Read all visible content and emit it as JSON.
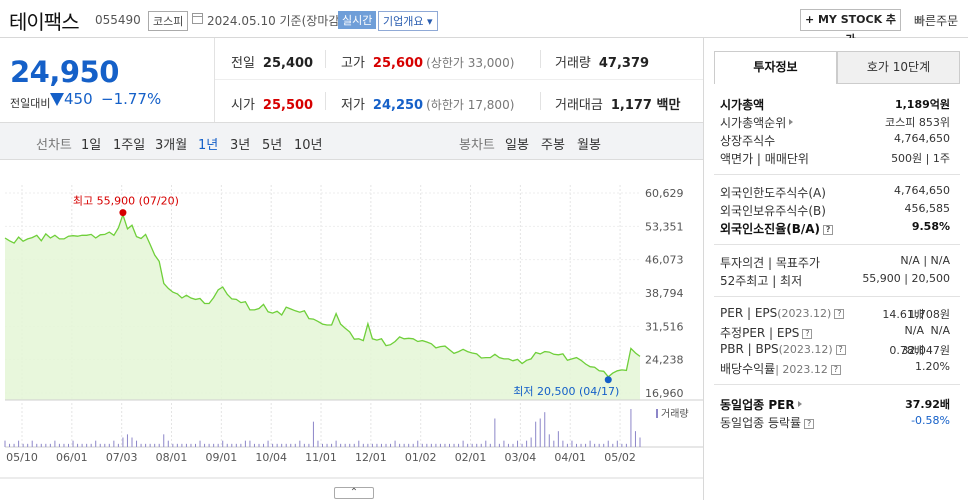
{
  "header": {
    "stock_name": "테이팩스",
    "stock_code": "055490",
    "market": "코스피",
    "date_text": "2024.05.10  기준(장마감)",
    "realtime_badge": "실시간",
    "company_badge": "기업개요 ▾",
    "mystock_label": "+ MY STOCK 추가",
    "quick_order_label": "빠른주문"
  },
  "price": {
    "current": "24,950",
    "change_label": "전일대비",
    "change_value": "450",
    "change_pct": "−1.77%",
    "color": "#1560c8"
  },
  "stats": {
    "prev_close_label": "전일",
    "prev_close": "25,400",
    "high_label": "고가",
    "high": "25,600",
    "upper_limit": "(상한가 33,000)",
    "volume_label": "거래량",
    "volume": "47,379",
    "open_label": "시가",
    "open": "25,500",
    "low_label": "저가",
    "low": "24,250",
    "lower_limit": "(하한가 17,800)",
    "amount_label": "거래대금",
    "amount": "1,177 백만"
  },
  "tabs": {
    "line_chart": "선차트",
    "periods": [
      "1일",
      "1주일",
      "3개월",
      "1년",
      "3년",
      "5년",
      "10년"
    ],
    "active_period": "1년",
    "candle_chart": "봉차트",
    "candle_periods": [
      "일봉",
      "주봉",
      "월봉"
    ]
  },
  "chart_data": {
    "type": "area",
    "y_ticks": [
      "60,629",
      "53,351",
      "46,073",
      "38,794",
      "31,516",
      "24,238",
      "16,960"
    ],
    "ylim": [
      16960,
      60629
    ],
    "x_ticks": [
      "05/10",
      "06/01",
      "07/03",
      "08/01",
      "09/01",
      "10/04",
      "11/01",
      "12/01",
      "01/02",
      "02/01",
      "03/04",
      "04/01",
      "05/02"
    ],
    "series": [
      {
        "values": [
          50800,
          50200,
          49700,
          51000,
          50100,
          50600,
          50900,
          51400,
          50200,
          51700,
          50800,
          51400,
          50600,
          50600,
          51200,
          51300,
          51200,
          51400,
          51400,
          51600,
          50800,
          51500,
          51600,
          52100,
          51400,
          53000,
          55900,
          52800,
          53600,
          51100,
          50700,
          51600,
          49400,
          47100,
          45700,
          40900,
          39800,
          39000,
          38600,
          37700,
          38300,
          37700,
          37400,
          37600,
          36500,
          36500,
          37800,
          39500,
          40100,
          38500,
          37500,
          37400,
          36700,
          36900,
          35100,
          35100,
          35400,
          36300,
          34700,
          34400,
          34800,
          34000,
          35700,
          35300,
          34900,
          34600,
          34900,
          33200,
          33100,
          32600,
          32000,
          31800,
          31800,
          34300,
          32000,
          31100,
          30300,
          28700,
          28800,
          28400,
          32100,
          28800,
          28500,
          28800,
          27300,
          27500,
          28200,
          29200,
          28800,
          28900,
          28800,
          28200,
          28400,
          28100,
          27700,
          26800,
          27100,
          27200,
          26400,
          25600,
          26000,
          26500,
          26000,
          25700,
          25500,
          24600,
          24700,
          24700,
          25400,
          24700,
          24400,
          24400,
          24000,
          24300,
          23400,
          24100,
          24400,
          25800,
          25500,
          26000,
          25900,
          25400,
          25300,
          25500,
          24100,
          24400,
          24700,
          24100,
          23300,
          22700,
          22600,
          21800,
          21700,
          20500,
          21300,
          21800,
          22000,
          21900,
          26700,
          25700,
          24950
        ]
      }
    ],
    "high_label": "최고 55,900 (07/20)",
    "low_label": "최저 20,500 (04/17)",
    "volume_label": "거래량",
    "volume": [
      2,
      1,
      1,
      2,
      1,
      1,
      2,
      1,
      1,
      1,
      1,
      2,
      1,
      1,
      1,
      2,
      1,
      1,
      1,
      1,
      2,
      1,
      1,
      1,
      2,
      1,
      3,
      4,
      3,
      2,
      1,
      1,
      1,
      1,
      1,
      4,
      2,
      1,
      1,
      1,
      1,
      1,
      1,
      2,
      1,
      1,
      1,
      1,
      2,
      1,
      1,
      1,
      1,
      2,
      2,
      1,
      1,
      1,
      2,
      1,
      1,
      1,
      1,
      1,
      1,
      2,
      1,
      1,
      8,
      2,
      1,
      1,
      1,
      2,
      1,
      1,
      1,
      1,
      2,
      1,
      1,
      1,
      1,
      1,
      1,
      1,
      2,
      1,
      1,
      1,
      1,
      2,
      1,
      1,
      1,
      1,
      1,
      1,
      1,
      1,
      1,
      2,
      1,
      1,
      1,
      1,
      2,
      1,
      9,
      1,
      2,
      1,
      1,
      2,
      1,
      2,
      3,
      8,
      9,
      11,
      4,
      2,
      5,
      2,
      1,
      2,
      1,
      1,
      1,
      2,
      1,
      1,
      1,
      2,
      1,
      2,
      1,
      1,
      12,
      5,
      3
    ],
    "line_color": "#6fcf3a",
    "fill_color": "#e4f6d6"
  },
  "right_panel": {
    "tab_invest": "투자정보",
    "tab_hoga": "호가 10단계",
    "sections": [
      [
        {
          "k": "시가총액",
          "v": "1,189억원",
          "bold": true
        },
        {
          "k": "시가총액순위",
          "v": "코스피  853위",
          "tri": true
        },
        {
          "k": "상장주식수",
          "v": "4,764,650"
        },
        {
          "k": "액면가 | 매매단위",
          "v": "500원 | 1주"
        }
      ],
      [
        {
          "k": "외국인한도주식수(A)",
          "v": "4,764,650"
        },
        {
          "k": "외국인보유주식수(B)",
          "v": "456,585"
        },
        {
          "k": "외국인소진율(B/A)",
          "v": "9.58%",
          "bold": true,
          "q": true
        }
      ],
      [
        {
          "k": "투자의견 | 목표주가",
          "v": "N/A | N/A"
        },
        {
          "k": "52주최고 | 최저",
          "v": "55,900 | 20,500"
        }
      ],
      [
        {
          "k": "PER | EPS",
          "ks": "(2023.12)",
          "q": true,
          "v1": "14.61배",
          "v": "1,708원"
        },
        {
          "k": "추정PER | EPS",
          "q": true,
          "v1": "N/A",
          "v": "N/A"
        },
        {
          "k": "PBR | BPS",
          "ks": "(2023.12)",
          "q": true,
          "v1": "0.78배",
          "v": "32,047원"
        },
        {
          "k": "배당수익률",
          "ks": "| 2023.12",
          "q": true,
          "v": "1.20%"
        }
      ],
      [
        {
          "k": "동일업종 PER",
          "v": "37.92배",
          "bold": true,
          "tri": true
        },
        {
          "k": "동일업종 등락률",
          "v": "-0.58%",
          "blue": true,
          "q": true
        }
      ]
    ]
  },
  "collapse_label": "⌃"
}
